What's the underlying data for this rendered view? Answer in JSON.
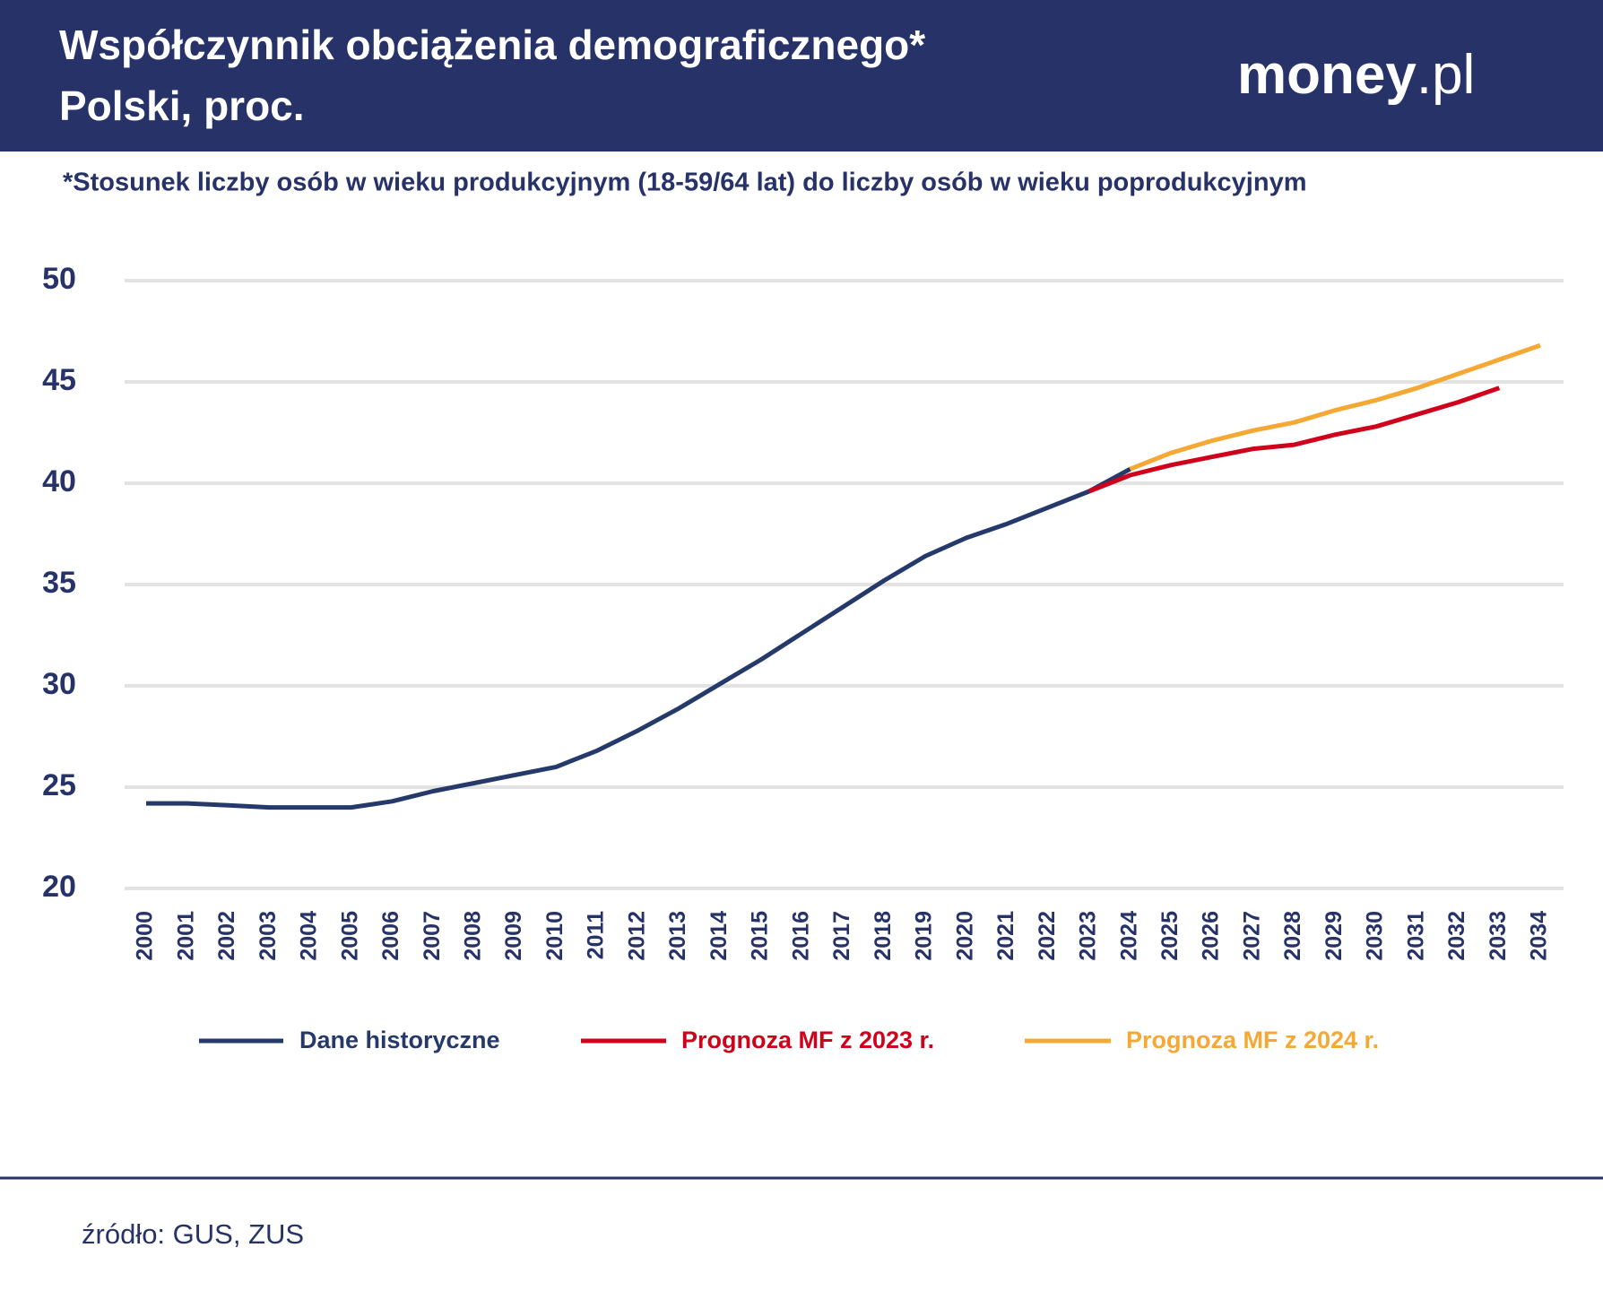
{
  "header": {
    "title_line1": "Współczynnik obciążenia demograficznego*",
    "title_line2": "Polski, proc.",
    "logo_main": "money",
    "logo_suffix": ".pl"
  },
  "chart_data": {
    "type": "line",
    "subtitle": "*Stosunek liczby osób w wieku produkcyjnym (18-59/64 lat) do liczby osób w wieku poprodukcyjnym",
    "categories": [
      "2000",
      "2001",
      "2002",
      "2003",
      "2004",
      "2005",
      "2006",
      "2007",
      "2008",
      "2009",
      "2010",
      "2011",
      "2012",
      "2013",
      "2014",
      "2015",
      "2016",
      "2017",
      "2018",
      "2019",
      "2020",
      "2021",
      "2022",
      "2023",
      "2024",
      "2025",
      "2026",
      "2027",
      "2028",
      "2029",
      "2030",
      "2031",
      "2032",
      "2033",
      "2034"
    ],
    "series": [
      {
        "name": "Dane historyczne",
        "color": "#253a6b",
        "values": [
          24.2,
          24.2,
          24.1,
          24.0,
          24.0,
          24.0,
          24.3,
          24.8,
          25.2,
          25.6,
          26.0,
          26.8,
          27.8,
          28.9,
          30.1,
          31.3,
          32.6,
          33.9,
          35.2,
          36.4,
          37.3,
          38.0,
          38.8,
          39.6,
          40.7,
          null,
          null,
          null,
          null,
          null,
          null,
          null,
          null,
          null,
          null
        ]
      },
      {
        "name": "Prognoza MF z 2023 r.",
        "color": "#d0021b",
        "values": [
          null,
          null,
          null,
          null,
          null,
          null,
          null,
          null,
          null,
          null,
          null,
          null,
          null,
          null,
          null,
          null,
          null,
          null,
          null,
          null,
          null,
          null,
          null,
          39.6,
          40.4,
          40.9,
          41.3,
          41.7,
          41.9,
          42.4,
          42.8,
          43.4,
          44.0,
          44.7,
          null
        ]
      },
      {
        "name": "Prognoza MF z 2024 r.",
        "color": "#f5a833",
        "values": [
          null,
          null,
          null,
          null,
          null,
          null,
          null,
          null,
          null,
          null,
          null,
          null,
          null,
          null,
          null,
          null,
          null,
          null,
          null,
          null,
          null,
          null,
          null,
          null,
          40.7,
          41.5,
          42.1,
          42.6,
          43.0,
          43.6,
          44.1,
          44.7,
          45.4,
          46.1,
          46.8
        ]
      }
    ],
    "ylim": [
      20,
      50
    ],
    "yticks": [
      20,
      25,
      30,
      35,
      40,
      45,
      50
    ],
    "grid": true
  },
  "footer": {
    "source": "źródło: GUS, ZUS"
  }
}
